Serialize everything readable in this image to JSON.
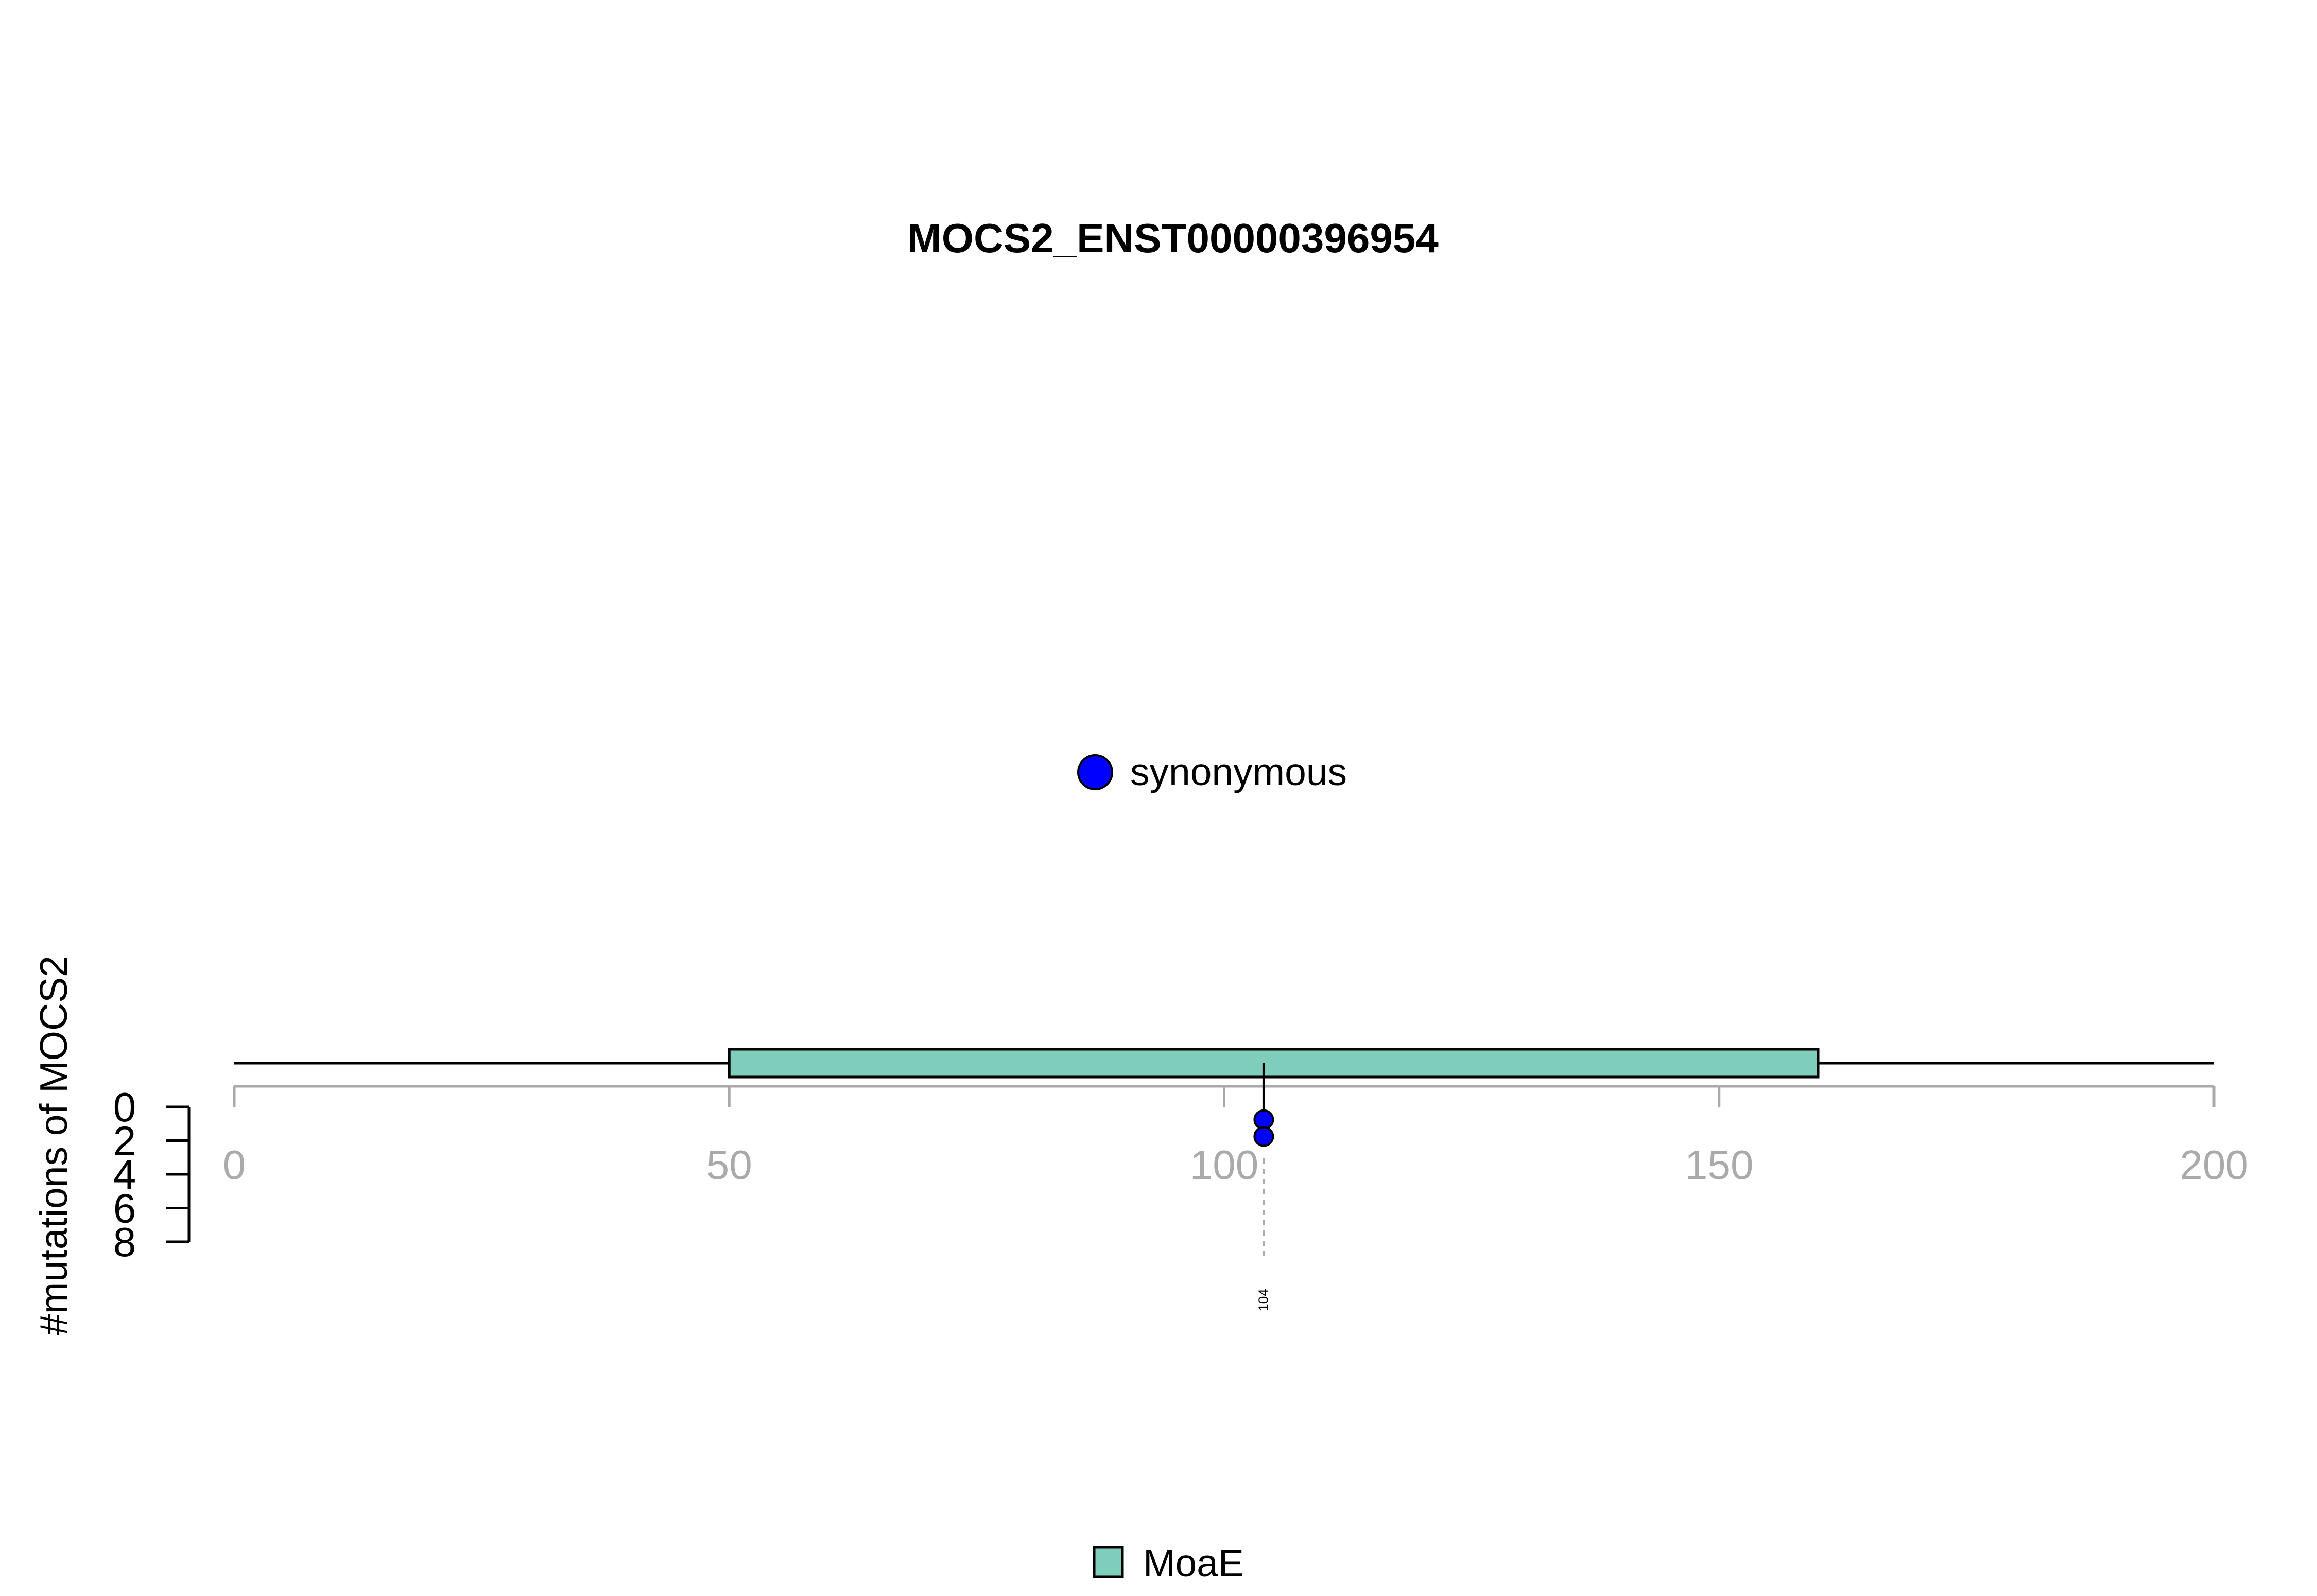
{
  "chart_data": {
    "type": "scatter",
    "title": "MOCS2_ENST00000396954",
    "xlabel": "",
    "ylabel": "#mutations of MOCS2",
    "xlim": [
      0,
      200
    ],
    "x_ticks": [
      "0",
      "50",
      "100",
      "150",
      "200"
    ],
    "ylim": [
      0,
      8
    ],
    "y_ticks": [
      "0",
      "2",
      "4",
      "6",
      "8"
    ],
    "protein_length": 200,
    "domains": [
      {
        "name": "MoaE",
        "start": 50,
        "end": 160,
        "color": "#7FCDBB"
      }
    ],
    "mutations": [
      {
        "position": 104,
        "label": "104",
        "count": 2,
        "type": "synonymous"
      }
    ],
    "series": [
      {
        "name": "synonymous",
        "color": "#0000FF",
        "x": [
          104,
          104
        ],
        "y": [
          1,
          2
        ]
      }
    ],
    "legend_mutation": [
      {
        "label": "synonymous",
        "color": "#0000FF"
      }
    ],
    "legend_domain": [
      {
        "label": "MoaE",
        "color": "#7FCDBB"
      }
    ],
    "grid": false
  }
}
